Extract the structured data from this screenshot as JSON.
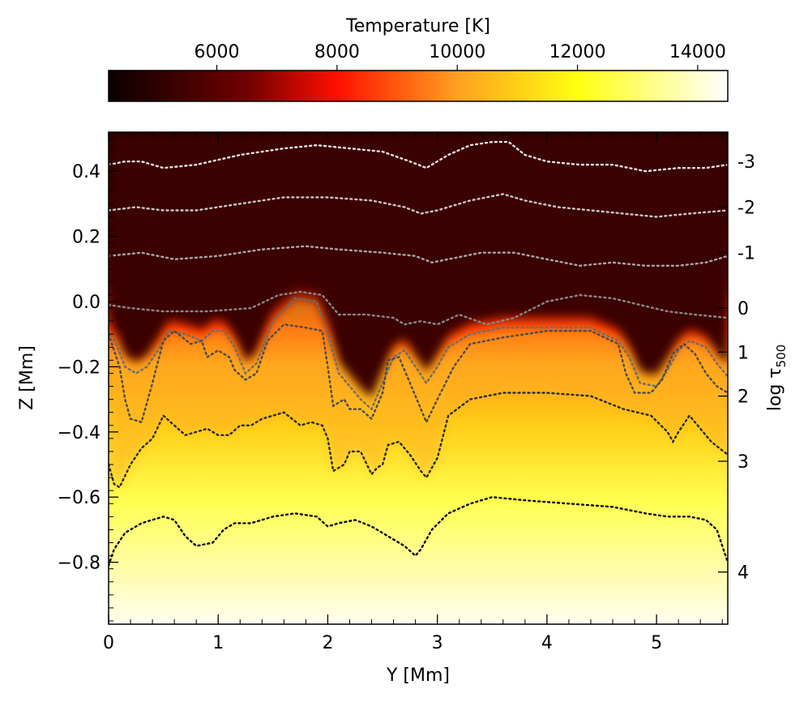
{
  "chart_data": {
    "type": "heatmap",
    "title": "",
    "colorbar": {
      "label": "Temperature [K]",
      "range": [
        4200,
        14500
      ],
      "ticks": [
        6000,
        8000,
        10000,
        12000,
        14000
      ],
      "tick_labels": [
        "6000",
        "8000",
        "10000",
        "12000",
        "14000"
      ],
      "colormap": "hot",
      "colormap_stops": [
        {
          "value": 4200,
          "color": "#0b0000"
        },
        {
          "value": 6500,
          "color": "#700000"
        },
        {
          "value": 8000,
          "color": "#ff1000"
        },
        {
          "value": 10000,
          "color": "#ffa020"
        },
        {
          "value": 12000,
          "color": "#ffff10"
        },
        {
          "value": 14500,
          "color": "#ffffff"
        }
      ]
    },
    "xlabel": "Y [Mm]",
    "ylabel": "Z [Mm]",
    "right_label": "log τ",
    "right_label_sub": "500",
    "xlim": [
      0,
      5.65
    ],
    "ylim": [
      -0.99,
      0.52
    ],
    "x_ticks": [
      0,
      1,
      2,
      3,
      4,
      5
    ],
    "x_tick_labels": [
      "0",
      "1",
      "2",
      "3",
      "4",
      "5"
    ],
    "y_ticks": [
      0.4,
      0.2,
      0.0,
      -0.2,
      -0.4,
      -0.6,
      -0.8
    ],
    "y_tick_labels": [
      "0.4",
      "0.2",
      "0.0",
      "−0.2",
      "−0.4",
      "−0.6",
      "−0.8"
    ],
    "tau_labels": [
      {
        "label": "-3",
        "z": 0.43
      },
      {
        "label": "-2",
        "z": 0.29
      },
      {
        "label": "-1",
        "z": 0.15
      },
      {
        "label": "0",
        "z": -0.02
      },
      {
        "label": "1",
        "z": -0.155
      },
      {
        "label": "2",
        "z": -0.29
      },
      {
        "label": "3",
        "z": -0.49
      },
      {
        "label": "4",
        "z": -0.83
      }
    ],
    "contours": [
      {
        "log_tau": "-3",
        "color": "#e6e6e6",
        "points": [
          [
            0,
            0.42
          ],
          [
            0.15,
            0.43
          ],
          [
            0.3,
            0.43
          ],
          [
            0.5,
            0.41
          ],
          [
            0.8,
            0.42
          ],
          [
            1.2,
            0.45
          ],
          [
            1.6,
            0.47
          ],
          [
            1.9,
            0.48
          ],
          [
            2.2,
            0.47
          ],
          [
            2.5,
            0.46
          ],
          [
            2.75,
            0.43
          ],
          [
            2.9,
            0.41
          ],
          [
            3.1,
            0.45
          ],
          [
            3.3,
            0.48
          ],
          [
            3.5,
            0.49
          ],
          [
            3.65,
            0.49
          ],
          [
            3.8,
            0.45
          ],
          [
            4.0,
            0.43
          ],
          [
            4.3,
            0.42
          ],
          [
            4.6,
            0.42
          ],
          [
            4.9,
            0.4
          ],
          [
            5.2,
            0.41
          ],
          [
            5.45,
            0.41
          ],
          [
            5.65,
            0.42
          ]
        ]
      },
      {
        "log_tau": "-2",
        "color": "#c8c8c8",
        "points": [
          [
            0,
            0.28
          ],
          [
            0.25,
            0.29
          ],
          [
            0.5,
            0.28
          ],
          [
            0.8,
            0.28
          ],
          [
            1.2,
            0.3
          ],
          [
            1.6,
            0.32
          ],
          [
            2.0,
            0.32
          ],
          [
            2.4,
            0.31
          ],
          [
            2.7,
            0.29
          ],
          [
            2.85,
            0.27
          ],
          [
            3.0,
            0.28
          ],
          [
            3.3,
            0.31
          ],
          [
            3.6,
            0.33
          ],
          [
            3.8,
            0.31
          ],
          [
            4.1,
            0.29
          ],
          [
            4.4,
            0.28
          ],
          [
            4.7,
            0.27
          ],
          [
            5.0,
            0.26
          ],
          [
            5.3,
            0.27
          ],
          [
            5.65,
            0.28
          ]
        ]
      },
      {
        "log_tau": "-1",
        "color": "#a8a8a8",
        "points": [
          [
            0,
            0.14
          ],
          [
            0.3,
            0.15
          ],
          [
            0.6,
            0.13
          ],
          [
            1.0,
            0.14
          ],
          [
            1.4,
            0.16
          ],
          [
            1.8,
            0.17
          ],
          [
            2.1,
            0.16
          ],
          [
            2.5,
            0.15
          ],
          [
            2.8,
            0.14
          ],
          [
            2.95,
            0.12
          ],
          [
            3.1,
            0.13
          ],
          [
            3.4,
            0.15
          ],
          [
            3.7,
            0.15
          ],
          [
            4.0,
            0.13
          ],
          [
            4.3,
            0.11
          ],
          [
            4.6,
            0.12
          ],
          [
            4.9,
            0.11
          ],
          [
            5.2,
            0.11
          ],
          [
            5.45,
            0.12
          ],
          [
            5.65,
            0.14
          ]
        ]
      },
      {
        "log_tau": "0",
        "color": "#888888",
        "points": [
          [
            0,
            -0.01
          ],
          [
            0.2,
            -0.02
          ],
          [
            0.5,
            -0.03
          ],
          [
            0.9,
            -0.03
          ],
          [
            1.3,
            -0.02
          ],
          [
            1.55,
            0.02
          ],
          [
            1.75,
            0.03
          ],
          [
            1.95,
            0.02
          ],
          [
            2.1,
            -0.04
          ],
          [
            2.35,
            -0.04
          ],
          [
            2.6,
            -0.05
          ],
          [
            2.7,
            -0.07
          ],
          [
            2.85,
            -0.06
          ],
          [
            3.0,
            -0.07
          ],
          [
            3.2,
            -0.04
          ],
          [
            3.45,
            -0.07
          ],
          [
            3.7,
            -0.05
          ],
          [
            4.0,
            0.0
          ],
          [
            4.3,
            0.02
          ],
          [
            4.6,
            0.01
          ],
          [
            4.85,
            -0.01
          ],
          [
            5.1,
            -0.03
          ],
          [
            5.35,
            -0.04
          ],
          [
            5.65,
            -0.05
          ]
        ]
      },
      {
        "log_tau": "1",
        "color": "#6c6c6c",
        "points": [
          [
            0,
            -0.09
          ],
          [
            0.08,
            -0.14
          ],
          [
            0.15,
            -0.2
          ],
          [
            0.25,
            -0.22
          ],
          [
            0.35,
            -0.2
          ],
          [
            0.45,
            -0.15
          ],
          [
            0.55,
            -0.09
          ],
          [
            0.7,
            -0.1
          ],
          [
            0.85,
            -0.12
          ],
          [
            0.95,
            -0.09
          ],
          [
            1.05,
            -0.09
          ],
          [
            1.15,
            -0.14
          ],
          [
            1.25,
            -0.22
          ],
          [
            1.35,
            -0.19
          ],
          [
            1.5,
            -0.06
          ],
          [
            1.7,
            0.01
          ],
          [
            1.9,
            0.0
          ],
          [
            2.0,
            -0.1
          ],
          [
            2.1,
            -0.22
          ],
          [
            2.2,
            -0.26
          ],
          [
            2.3,
            -0.3
          ],
          [
            2.4,
            -0.33
          ],
          [
            2.5,
            -0.25
          ],
          [
            2.6,
            -0.17
          ],
          [
            2.7,
            -0.15
          ],
          [
            2.8,
            -0.2
          ],
          [
            2.9,
            -0.25
          ],
          [
            3.0,
            -0.2
          ],
          [
            3.1,
            -0.14
          ],
          [
            3.3,
            -0.1
          ],
          [
            3.6,
            -0.08
          ],
          [
            4.0,
            -0.08
          ],
          [
            4.4,
            -0.08
          ],
          [
            4.65,
            -0.12
          ],
          [
            4.75,
            -0.17
          ],
          [
            4.85,
            -0.25
          ],
          [
            5.0,
            -0.26
          ],
          [
            5.1,
            -0.21
          ],
          [
            5.2,
            -0.15
          ],
          [
            5.3,
            -0.12
          ],
          [
            5.45,
            -0.14
          ],
          [
            5.55,
            -0.19
          ],
          [
            5.65,
            -0.23
          ]
        ]
      },
      {
        "log_tau": "2",
        "color": "#4a4a4a",
        "points": [
          [
            0,
            -0.1
          ],
          [
            0.1,
            -0.2
          ],
          [
            0.15,
            -0.3
          ],
          [
            0.2,
            -0.36
          ],
          [
            0.3,
            -0.37
          ],
          [
            0.4,
            -0.25
          ],
          [
            0.5,
            -0.12
          ],
          [
            0.6,
            -0.09
          ],
          [
            0.75,
            -0.13
          ],
          [
            0.85,
            -0.12
          ],
          [
            0.9,
            -0.17
          ],
          [
            1.0,
            -0.15
          ],
          [
            1.1,
            -0.17
          ],
          [
            1.15,
            -0.21
          ],
          [
            1.25,
            -0.24
          ],
          [
            1.35,
            -0.22
          ],
          [
            1.45,
            -0.12
          ],
          [
            1.6,
            -0.07
          ],
          [
            1.8,
            -0.08
          ],
          [
            1.95,
            -0.09
          ],
          [
            2.0,
            -0.2
          ],
          [
            2.05,
            -0.32
          ],
          [
            2.15,
            -0.3
          ],
          [
            2.2,
            -0.33
          ],
          [
            2.3,
            -0.33
          ],
          [
            2.4,
            -0.36
          ],
          [
            2.5,
            -0.28
          ],
          [
            2.55,
            -0.18
          ],
          [
            2.65,
            -0.17
          ],
          [
            2.75,
            -0.25
          ],
          [
            2.85,
            -0.33
          ],
          [
            2.9,
            -0.37
          ],
          [
            3.0,
            -0.3
          ],
          [
            3.15,
            -0.2
          ],
          [
            3.3,
            -0.13
          ],
          [
            3.6,
            -0.11
          ],
          [
            4.0,
            -0.09
          ],
          [
            4.4,
            -0.09
          ],
          [
            4.65,
            -0.13
          ],
          [
            4.72,
            -0.22
          ],
          [
            4.8,
            -0.28
          ],
          [
            4.95,
            -0.28
          ],
          [
            5.05,
            -0.24
          ],
          [
            5.15,
            -0.16
          ],
          [
            5.25,
            -0.13
          ],
          [
            5.35,
            -0.16
          ],
          [
            5.45,
            -0.22
          ],
          [
            5.55,
            -0.26
          ],
          [
            5.65,
            -0.28
          ]
        ]
      },
      {
        "log_tau": "3",
        "color": "#2a2a2a",
        "points": [
          [
            0,
            -0.5
          ],
          [
            0.05,
            -0.56
          ],
          [
            0.1,
            -0.57
          ],
          [
            0.2,
            -0.5
          ],
          [
            0.3,
            -0.45
          ],
          [
            0.4,
            -0.42
          ],
          [
            0.5,
            -0.35
          ],
          [
            0.6,
            -0.38
          ],
          [
            0.7,
            -0.41
          ],
          [
            0.8,
            -0.4
          ],
          [
            0.9,
            -0.39
          ],
          [
            1.0,
            -0.41
          ],
          [
            1.1,
            -0.41
          ],
          [
            1.2,
            -0.38
          ],
          [
            1.3,
            -0.38
          ],
          [
            1.4,
            -0.36
          ],
          [
            1.5,
            -0.35
          ],
          [
            1.6,
            -0.34
          ],
          [
            1.75,
            -0.38
          ],
          [
            1.85,
            -0.37
          ],
          [
            1.95,
            -0.38
          ],
          [
            2.0,
            -0.42
          ],
          [
            2.05,
            -0.52
          ],
          [
            2.15,
            -0.5
          ],
          [
            2.2,
            -0.46
          ],
          [
            2.3,
            -0.46
          ],
          [
            2.4,
            -0.53
          ],
          [
            2.45,
            -0.51
          ],
          [
            2.5,
            -0.5
          ],
          [
            2.55,
            -0.44
          ],
          [
            2.65,
            -0.43
          ],
          [
            2.75,
            -0.47
          ],
          [
            2.85,
            -0.52
          ],
          [
            2.9,
            -0.54
          ],
          [
            3.0,
            -0.48
          ],
          [
            3.1,
            -0.35
          ],
          [
            3.3,
            -0.3
          ],
          [
            3.6,
            -0.28
          ],
          [
            4.0,
            -0.28
          ],
          [
            4.4,
            -0.29
          ],
          [
            4.7,
            -0.33
          ],
          [
            4.95,
            -0.35
          ],
          [
            5.1,
            -0.4
          ],
          [
            5.15,
            -0.43
          ],
          [
            5.2,
            -0.4
          ],
          [
            5.3,
            -0.35
          ],
          [
            5.4,
            -0.39
          ],
          [
            5.5,
            -0.43
          ],
          [
            5.65,
            -0.47
          ]
        ]
      },
      {
        "log_tau": "4",
        "color": "#0a0a0a",
        "points": [
          [
            0,
            -0.81
          ],
          [
            0.05,
            -0.76
          ],
          [
            0.15,
            -0.71
          ],
          [
            0.3,
            -0.68
          ],
          [
            0.5,
            -0.66
          ],
          [
            0.6,
            -0.67
          ],
          [
            0.7,
            -0.72
          ],
          [
            0.8,
            -0.75
          ],
          [
            0.95,
            -0.74
          ],
          [
            1.05,
            -0.7
          ],
          [
            1.15,
            -0.68
          ],
          [
            1.3,
            -0.68
          ],
          [
            1.5,
            -0.66
          ],
          [
            1.7,
            -0.65
          ],
          [
            1.9,
            -0.66
          ],
          [
            2.0,
            -0.69
          ],
          [
            2.1,
            -0.68
          ],
          [
            2.25,
            -0.67
          ],
          [
            2.4,
            -0.69
          ],
          [
            2.55,
            -0.72
          ],
          [
            2.7,
            -0.75
          ],
          [
            2.8,
            -0.78
          ],
          [
            2.85,
            -0.76
          ],
          [
            2.95,
            -0.7
          ],
          [
            3.1,
            -0.65
          ],
          [
            3.3,
            -0.62
          ],
          [
            3.5,
            -0.6
          ],
          [
            3.8,
            -0.61
          ],
          [
            4.2,
            -0.62
          ],
          [
            4.6,
            -0.63
          ],
          [
            4.9,
            -0.65
          ],
          [
            5.1,
            -0.66
          ],
          [
            5.3,
            -0.66
          ],
          [
            5.45,
            -0.67
          ],
          [
            5.55,
            -0.7
          ],
          [
            5.65,
            -0.8
          ]
        ]
      }
    ]
  }
}
